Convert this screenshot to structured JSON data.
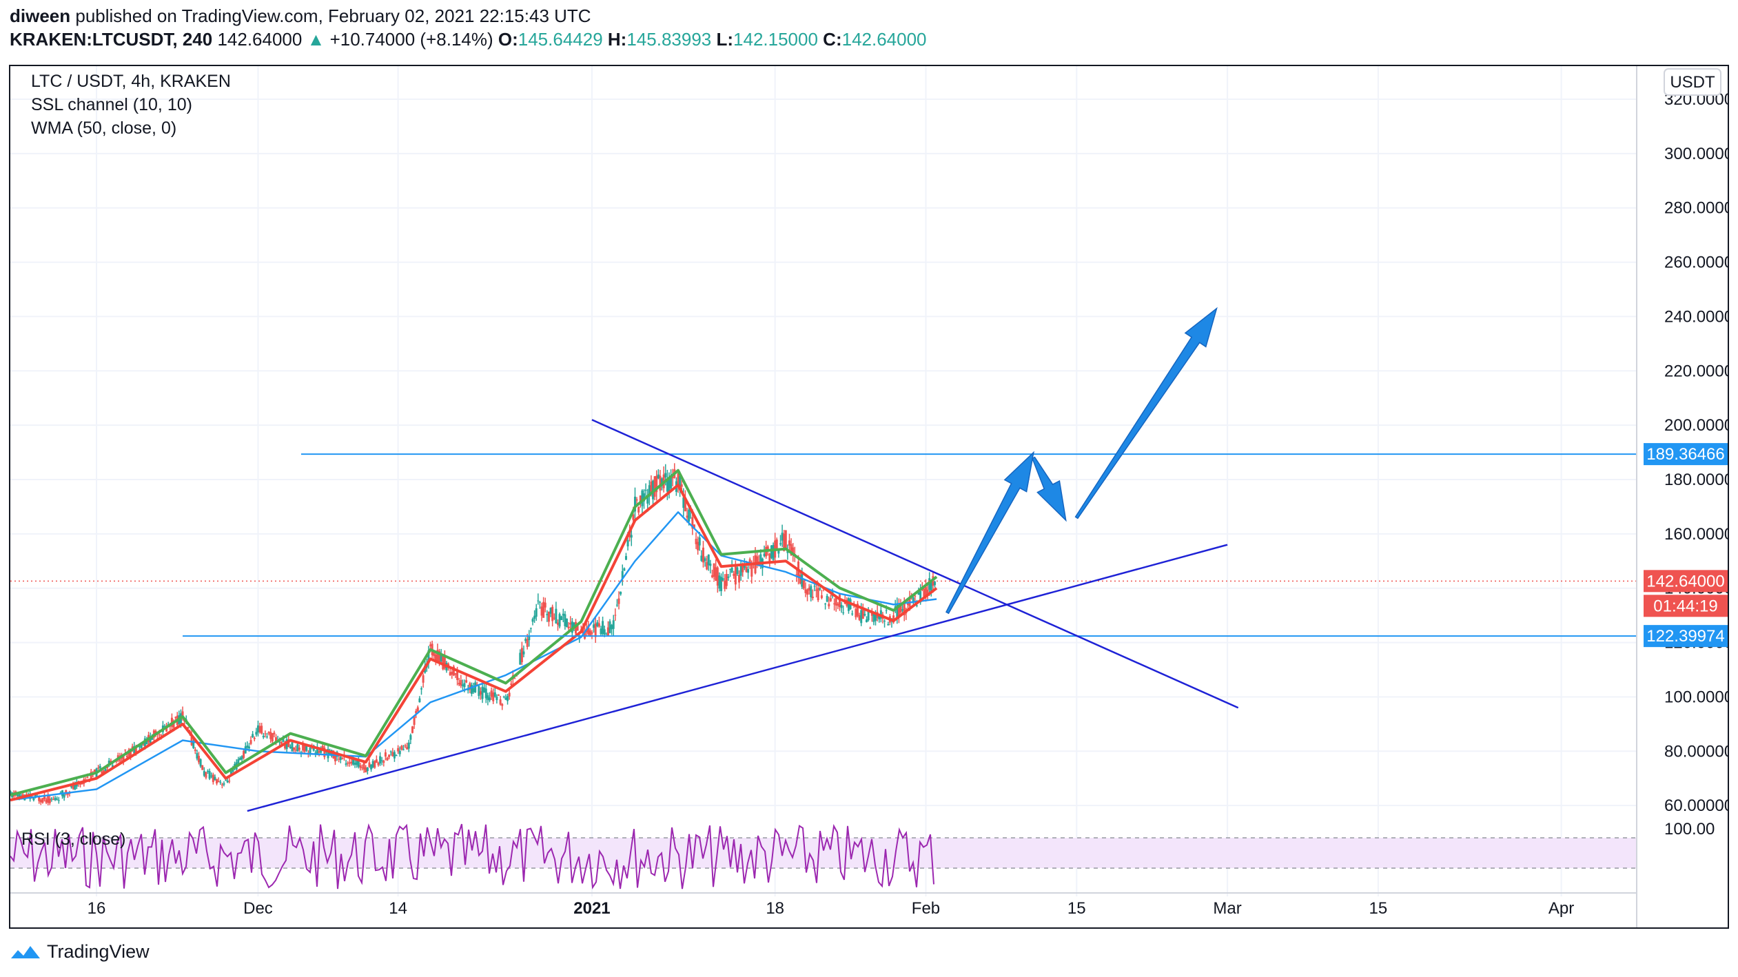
{
  "header": {
    "author": "diween",
    "published": "published on TradingView.com, February 02, 2021 22:15:43 UTC",
    "symbol": "KRAKEN:LTCUSDT, 240",
    "price": "142.64000",
    "change": "+10.74000 (+8.14%)",
    "open_label": "O:",
    "open": "145.64429",
    "high_label": "H:",
    "high": "145.83993",
    "low_label": "L:",
    "low": "142.15000",
    "close_label": "C:",
    "close": "142.64000"
  },
  "legend": {
    "pair": "LTC / USDT, 4h, KRAKEN",
    "ind1": "SSL channel (10, 10)",
    "ind2": "WMA (50, close, 0)",
    "rsi": "RSI (3, close)"
  },
  "currency_badge": "USDT",
  "badges": {
    "level_high": "189.36466",
    "last_price": "142.64000",
    "countdown": "01:44:19",
    "level_low": "122.39974"
  },
  "footer": {
    "brand": "TradingView"
  },
  "colors": {
    "up": "#26a69a",
    "down": "#ef5350",
    "ssl_up": "#4caf50",
    "ssl_down": "#f44336",
    "wma": "#2196f3",
    "trend": "#1e22d6",
    "level": "#2196f3",
    "arrow": "#1e88e5",
    "rsi": "#9c27b0",
    "rsi_band": "#f3e5fb"
  },
  "chart_data": {
    "type": "line",
    "title": "LTC / USDT, 4h, KRAKEN",
    "ylabel": "USDT",
    "ylim": [
      57,
      320
    ],
    "y_ticks": [
      "60.00000",
      "80.00000",
      "100.00000",
      "120.00000",
      "140.00000",
      "160.00000",
      "180.00000",
      "200.00000",
      "220.00000",
      "240.00000",
      "260.00000",
      "280.00000",
      "300.00000",
      "320.00000"
    ],
    "y_tick_values": [
      60,
      80,
      100,
      120,
      140,
      160,
      180,
      200,
      220,
      240,
      260,
      280,
      300,
      320
    ],
    "x_ticks": [
      "16",
      "Dec",
      "14",
      "2021",
      "18",
      "Feb",
      "15",
      "Mar",
      "15",
      "Apr"
    ],
    "x_tick_dates": [
      "2020-11-16",
      "2020-12-01",
      "2020-12-14",
      "2021-01-01",
      "2021-01-18",
      "2021-02-01",
      "2021-02-15",
      "2021-03-01",
      "2021-03-15",
      "2021-04-01"
    ],
    "x_range": [
      "2020-11-08",
      "2021-04-08"
    ],
    "price_series": {
      "name": "LTC / USDT",
      "x": [
        "2020-11-08",
        "2020-11-12",
        "2020-11-16",
        "2020-11-20",
        "2020-11-24",
        "2020-11-26",
        "2020-11-28",
        "2020-12-01",
        "2020-12-04",
        "2020-12-07",
        "2020-12-11",
        "2020-12-15",
        "2020-12-17",
        "2020-12-20",
        "2020-12-24",
        "2020-12-27",
        "2020-12-31",
        "2021-01-03",
        "2021-01-05",
        "2021-01-07",
        "2021-01-09",
        "2021-01-11",
        "2021-01-13",
        "2021-01-16",
        "2021-01-19",
        "2021-01-21",
        "2021-01-24",
        "2021-01-27",
        "2021-01-29",
        "2021-02-02"
      ],
      "y": [
        64,
        62,
        72,
        82,
        93,
        72,
        68,
        88,
        82,
        80,
        74,
        82,
        118,
        105,
        98,
        133,
        124,
        126,
        170,
        178,
        180,
        155,
        142,
        148,
        158,
        139,
        135,
        128,
        130,
        142.64
      ]
    },
    "ssl_series": {
      "name": "SSL channel (10, 10)",
      "x": [
        "2020-11-08",
        "2020-11-16",
        "2020-11-24",
        "2020-11-28",
        "2020-12-04",
        "2020-12-11",
        "2020-12-17",
        "2020-12-24",
        "2020-12-31",
        "2021-01-05",
        "2021-01-09",
        "2021-01-13",
        "2021-01-19",
        "2021-01-24",
        "2021-01-29",
        "2021-02-02"
      ],
      "y": [
        62,
        70,
        90,
        70,
        84,
        76,
        114,
        102,
        124,
        165,
        178,
        148,
        150,
        136,
        128,
        140
      ]
    },
    "wma_series": {
      "name": "WMA (50, close, 0)",
      "x": [
        "2020-11-08",
        "2020-11-16",
        "2020-11-24",
        "2020-12-01",
        "2020-12-11",
        "2020-12-17",
        "2020-12-24",
        "2020-12-31",
        "2021-01-05",
        "2021-01-09",
        "2021-01-13",
        "2021-01-19",
        "2021-01-24",
        "2021-01-29",
        "2021-02-02"
      ],
      "y": [
        62,
        66,
        84,
        80,
        78,
        98,
        108,
        122,
        150,
        168,
        152,
        146,
        138,
        134,
        136
      ]
    },
    "horizontal_levels": [
      189.36466,
      122.39974
    ],
    "last_price": 142.64,
    "rsi": {
      "name": "RSI (3, close)",
      "upper_band": 70,
      "lower_band": 30,
      "top_tick": "100.00"
    }
  }
}
